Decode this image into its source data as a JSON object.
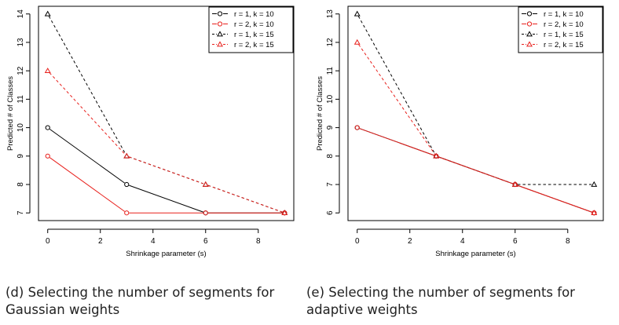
{
  "chart_data": [
    {
      "type": "line",
      "xlabel": "Shrinkage parameter (s)",
      "ylabel": "Predicted # of Classes",
      "x": [
        0,
        3,
        6,
        9
      ],
      "xticks": [
        0,
        2,
        4,
        6,
        8
      ],
      "yticks": [
        7,
        8,
        9,
        10,
        11,
        12,
        13,
        14
      ],
      "xlim": [
        -0.35,
        9.35
      ],
      "ylim": [
        6.73,
        14.27
      ],
      "legend_position": "top-right",
      "series": [
        {
          "name": "r = 1, k = 10",
          "values": [
            10,
            8,
            7,
            7
          ],
          "color": "#000000",
          "marker": "circle",
          "dash": "solid"
        },
        {
          "name": "r = 2, k = 10",
          "values": [
            9,
            7,
            7,
            7
          ],
          "color": "#e8201c",
          "marker": "circle",
          "dash": "solid"
        },
        {
          "name": "r = 1, k = 15",
          "values": [
            14,
            9,
            8,
            7
          ],
          "color": "#000000",
          "marker": "triangle",
          "dash": "dashed"
        },
        {
          "name": "r = 2, k = 15",
          "values": [
            12,
            9,
            8,
            7
          ],
          "color": "#e8201c",
          "marker": "triangle",
          "dash": "dashed"
        }
      ],
      "caption": "(d) Selecting the number of segments for Gaussian weights"
    },
    {
      "type": "line",
      "xlabel": "Shrinkage parameter (s)",
      "ylabel": "Predicted # of Classes",
      "x": [
        0,
        3,
        6,
        9
      ],
      "xticks": [
        0,
        2,
        4,
        6,
        8
      ],
      "yticks": [
        6,
        7,
        8,
        9,
        10,
        11,
        12,
        13
      ],
      "xlim": [
        -0.35,
        9.35
      ],
      "ylim": [
        5.73,
        13.27
      ],
      "legend_position": "top-right",
      "series": [
        {
          "name": "r = 1, k = 10",
          "values": [
            9,
            8,
            7,
            6
          ],
          "color": "#000000",
          "marker": "circle",
          "dash": "solid"
        },
        {
          "name": "r = 2, k = 10",
          "values": [
            9,
            8,
            7,
            6
          ],
          "color": "#e8201c",
          "marker": "circle",
          "dash": "solid"
        },
        {
          "name": "r = 1, k = 15",
          "values": [
            13,
            8,
            7,
            7
          ],
          "color": "#000000",
          "marker": "triangle",
          "dash": "dashed"
        },
        {
          "name": "r = 2, k = 15",
          "values": [
            12,
            8,
            7,
            6
          ],
          "color": "#e8201c",
          "marker": "triangle",
          "dash": "dashed"
        }
      ],
      "caption": "(e) Selecting the number of segments for adaptive weights"
    }
  ]
}
